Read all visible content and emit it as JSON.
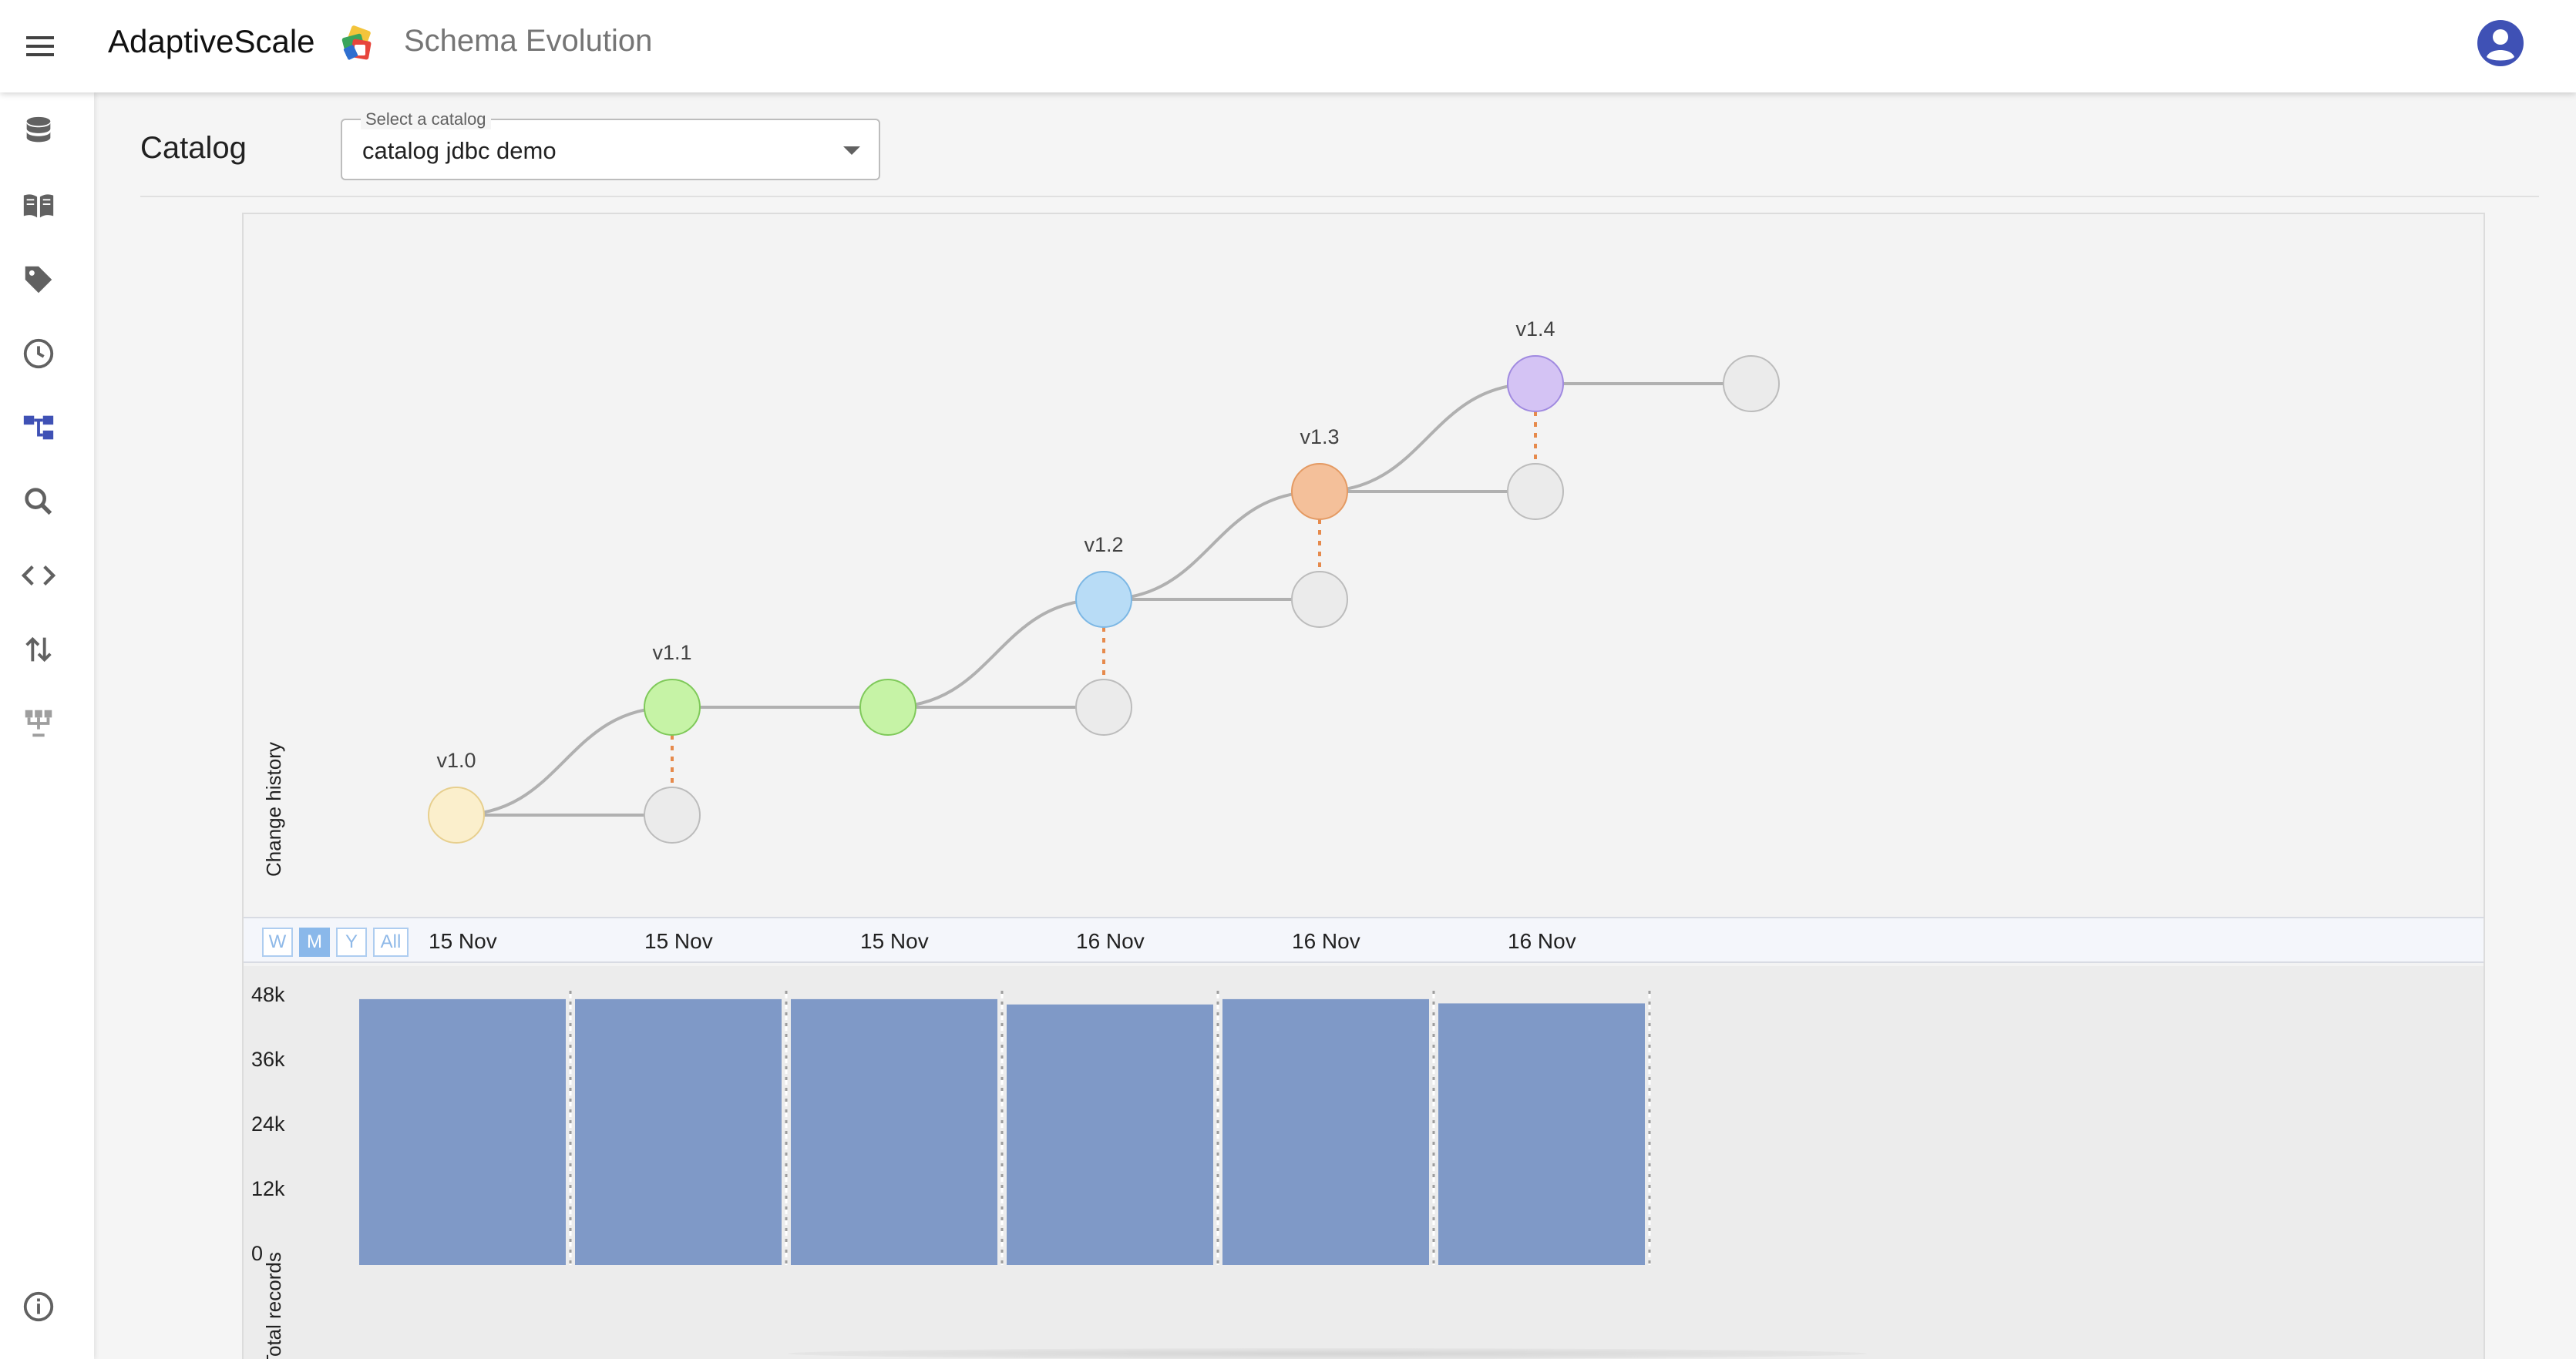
{
  "header": {
    "brand": "AdaptiveScale",
    "app_title": "Schema Evolution",
    "menu_icon": "hamburger-menu-icon",
    "account_icon": "account-circle-icon",
    "accent_color": "#3f51b5"
  },
  "sidebar": {
    "items": [
      {
        "icon": "database-icon",
        "active": false
      },
      {
        "icon": "book-icon",
        "active": false
      },
      {
        "icon": "tag-icon",
        "active": false
      },
      {
        "icon": "clock-icon",
        "active": false
      },
      {
        "icon": "schema-tree-icon",
        "active": true
      },
      {
        "icon": "search-icon",
        "active": false
      },
      {
        "icon": "code-icon",
        "active": false
      },
      {
        "icon": "swap-vertical-icon",
        "active": false
      },
      {
        "icon": "lineage-icon",
        "active": false
      }
    ],
    "footer_icon": "info-icon"
  },
  "catalog": {
    "label": "Catalog",
    "select_legend": "Select a catalog",
    "select_value": "catalog jdbc demo"
  },
  "history": {
    "axis_label": "Change history",
    "versions": [
      {
        "label": "v1.0",
        "color": "#fbefcc",
        "stroke": "#e7cf8e"
      },
      {
        "label": "v1.1",
        "color": "#c6f3a6",
        "stroke": "#7fc95a"
      },
      {
        "label": "",
        "color": "#c6f3a6",
        "stroke": "#7fc95a"
      },
      {
        "label": "v1.2",
        "color": "#b8dcf6",
        "stroke": "#7cb7e4"
      },
      {
        "label": "v1.3",
        "color": "#f4c09a",
        "stroke": "#e49a63"
      },
      {
        "label": "v1.4",
        "color": "#d4c3f4",
        "stroke": "#a08ae0"
      }
    ],
    "connector_color": "#e68a4c"
  },
  "timeline": {
    "zoom_buttons": [
      "W",
      "M",
      "Y",
      "All"
    ],
    "active_zoom": "M",
    "dates": [
      "15 Nov",
      "15 Nov",
      "15 Nov",
      "16 Nov",
      "16 Nov",
      "16 Nov"
    ]
  },
  "chart_data": {
    "type": "bar",
    "ylabel": "Total records",
    "categories": [
      "15 Nov",
      "15 Nov",
      "15 Nov",
      "16 Nov",
      "16 Nov",
      "16 Nov"
    ],
    "values": [
      50000,
      50000,
      50000,
      49000,
      50000,
      49200
    ],
    "yticks": [
      "48k",
      "36k",
      "24k",
      "12k",
      "0"
    ],
    "ylim": [
      0,
      51000
    ],
    "bar_color": "#7f99c7"
  }
}
